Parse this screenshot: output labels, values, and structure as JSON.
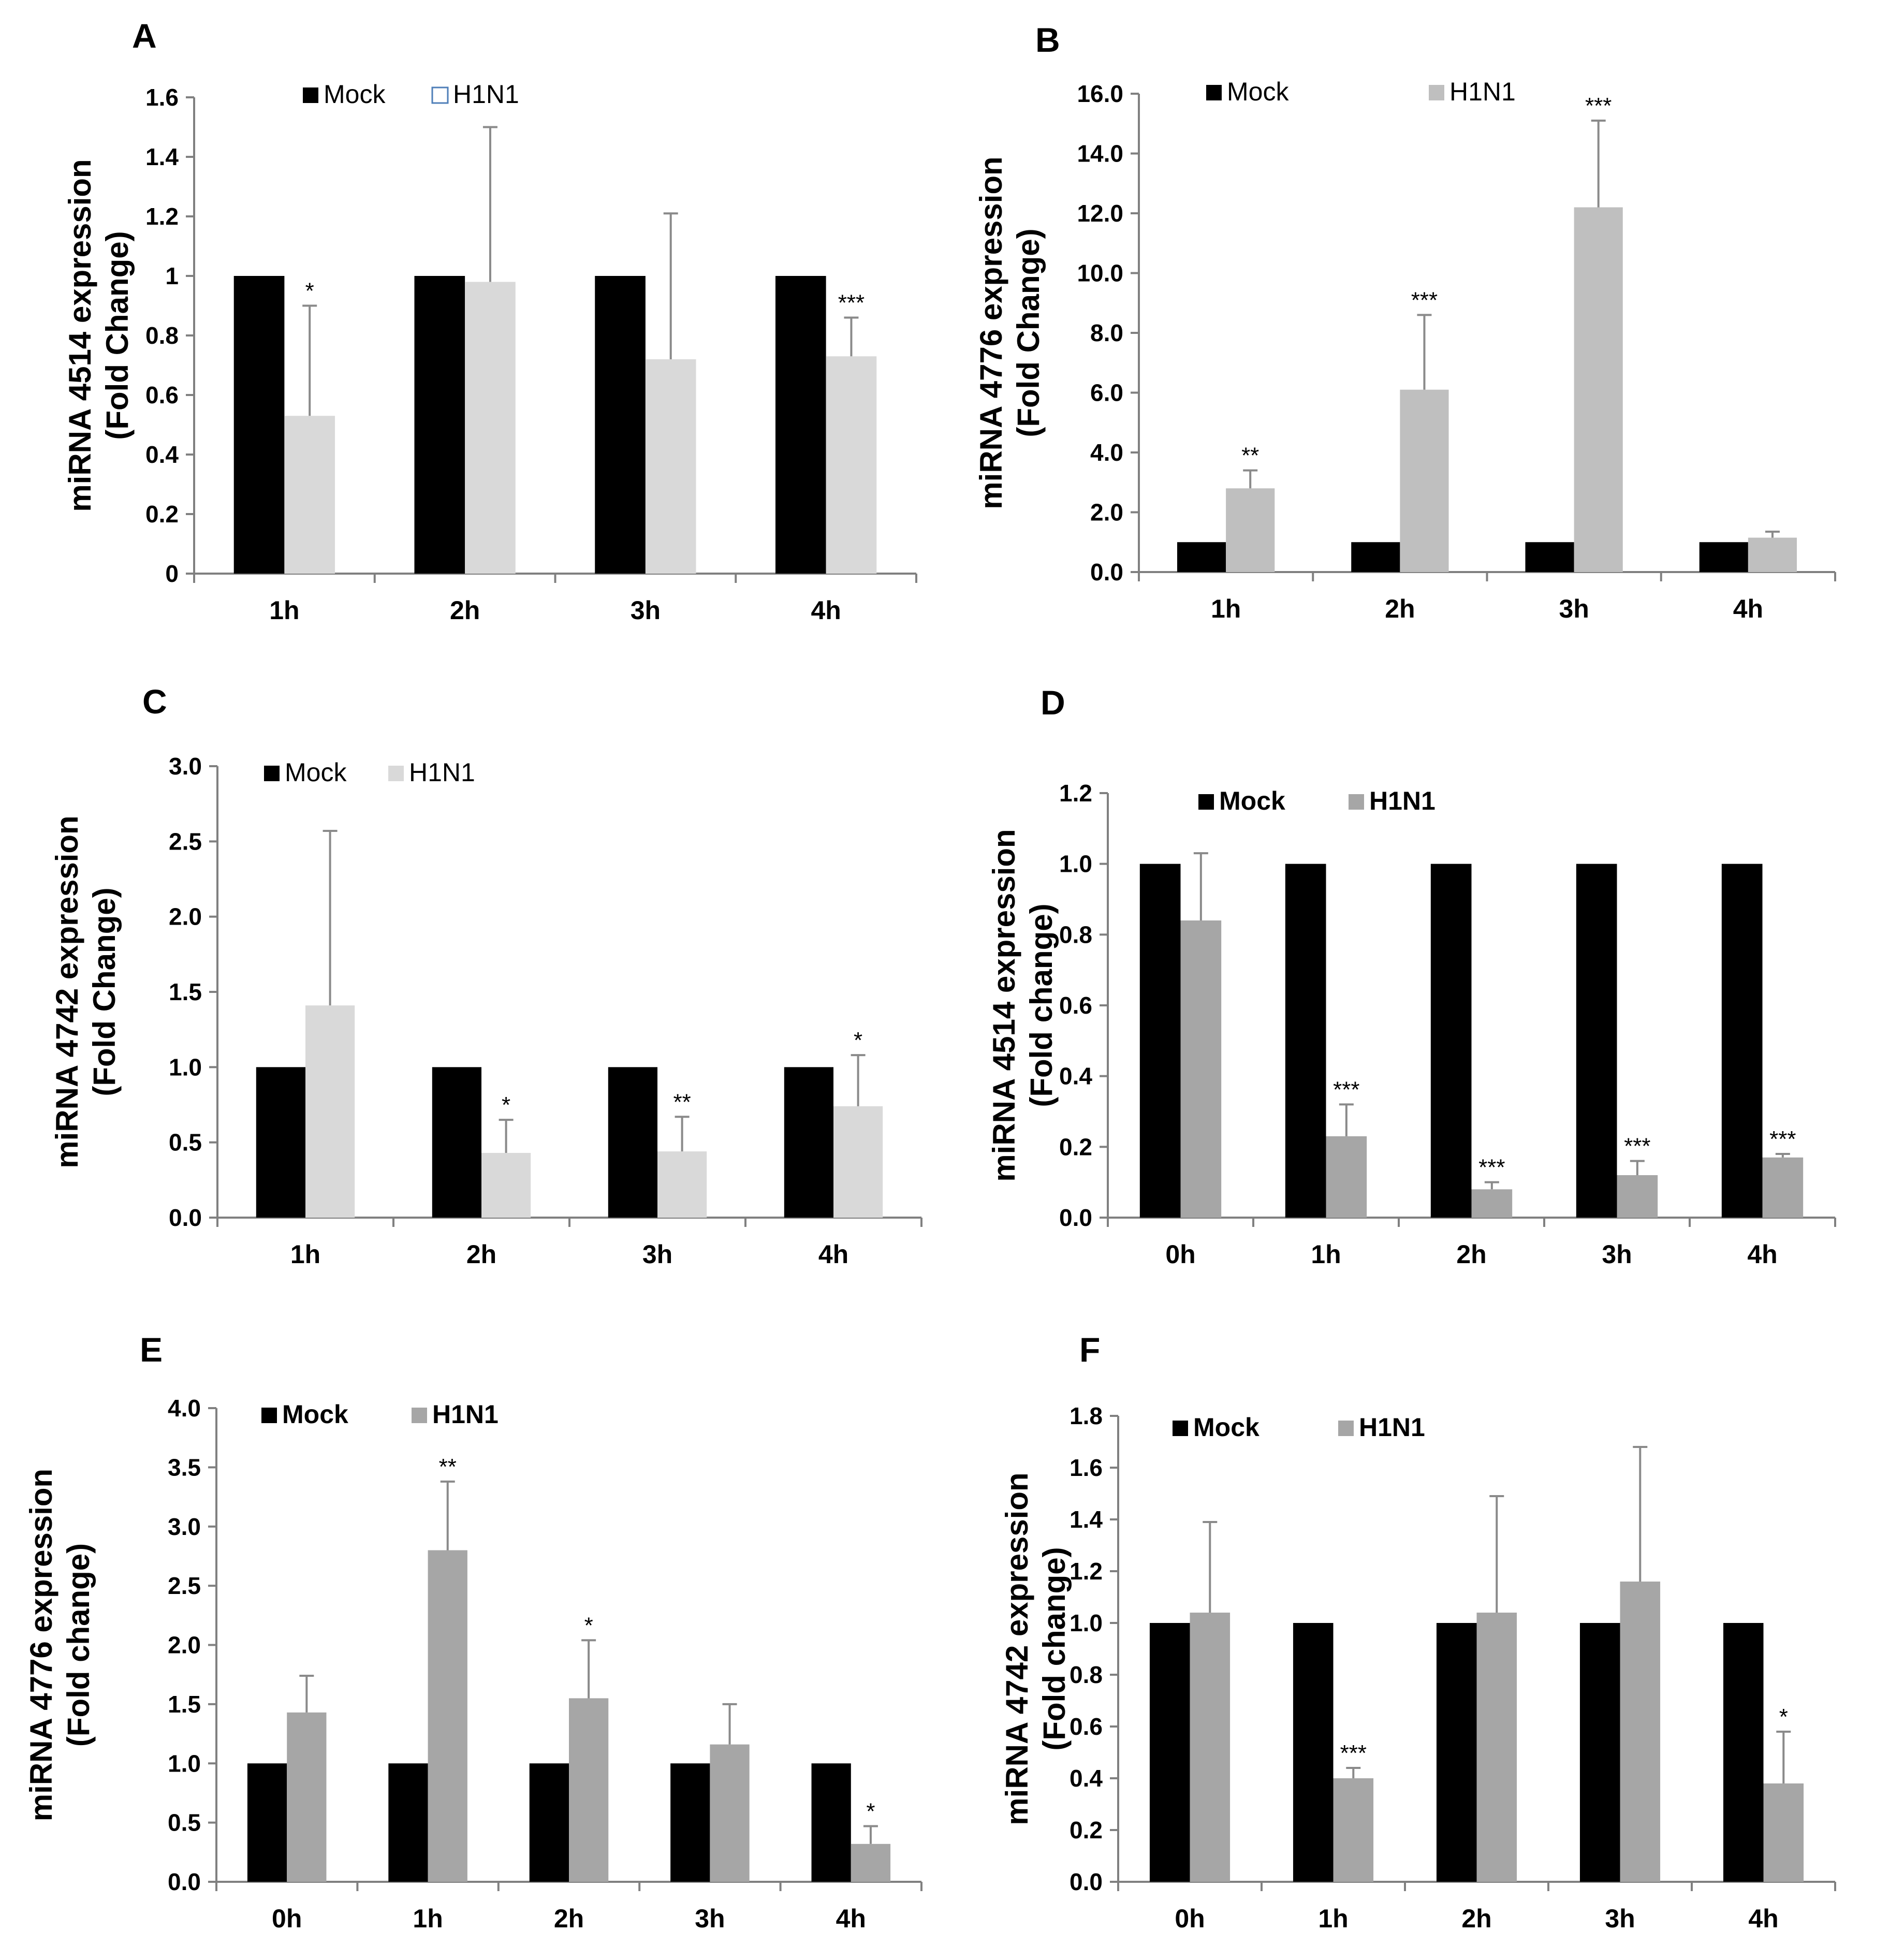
{
  "chart_data": [
    {
      "panel": "A",
      "type": "bar",
      "ylabel": [
        "miRNA 4514 expression",
        "(Fold Change)"
      ],
      "categories": [
        "1h",
        "2h",
        "3h",
        "4h"
      ],
      "ylim": [
        0,
        1.6
      ],
      "yticks": [
        "0",
        "0.2",
        "0.4",
        "0.6",
        "0.8",
        "1",
        "1.2",
        "1.4",
        "1.6"
      ],
      "series": [
        {
          "name": "Mock",
          "color": "#000000",
          "values": [
            1,
            1,
            1,
            1
          ]
        },
        {
          "name": "H1N1",
          "color": "#d9d9d9",
          "values": [
            0.53,
            0.98,
            0.72,
            0.73
          ],
          "error_top": [
            0.9,
            1.5,
            1.21,
            0.86
          ]
        }
      ],
      "significance": [
        "*",
        "",
        "",
        "***"
      ],
      "legend": {
        "mock": "Mock",
        "h1n1": "H1N1"
      }
    },
    {
      "panel": "B",
      "type": "bar",
      "ylabel": [
        "miRNA 4776 expression",
        "(Fold Change)"
      ],
      "categories": [
        "1h",
        "2h",
        "3h",
        "4h"
      ],
      "ylim": [
        0,
        16
      ],
      "yticks": [
        "0.0",
        "2.0",
        "4.0",
        "6.0",
        "8.0",
        "10.0",
        "12.0",
        "14.0",
        "16.0"
      ],
      "series": [
        {
          "name": "Mock",
          "color": "#000000",
          "values": [
            1,
            1,
            1,
            1
          ]
        },
        {
          "name": "H1N1",
          "color": "#bfbfbf",
          "values": [
            2.8,
            6.1,
            12.2,
            1.15
          ],
          "error_top": [
            3.4,
            8.6,
            15.1,
            1.35
          ]
        }
      ],
      "significance": [
        "**",
        "***",
        "***",
        ""
      ],
      "legend": {
        "mock": "Mock",
        "h1n1": "H1N1"
      }
    },
    {
      "panel": "C",
      "type": "bar",
      "ylabel": [
        "miRNA 4742 expression",
        "(Fold Change)"
      ],
      "categories": [
        "1h",
        "2h",
        "3h",
        "4h"
      ],
      "ylim": [
        0,
        3.0
      ],
      "yticks": [
        "0.0",
        "0.5",
        "1.0",
        "1.5",
        "2.0",
        "2.5",
        "3.0"
      ],
      "series": [
        {
          "name": "Mock",
          "color": "#000000",
          "values": [
            1,
            1,
            1,
            1
          ]
        },
        {
          "name": "H1N1",
          "color": "#d9d9d9",
          "values": [
            1.41,
            0.43,
            0.44,
            0.74
          ],
          "error_top": [
            2.57,
            0.65,
            0.67,
            1.08
          ]
        }
      ],
      "significance": [
        "",
        "*",
        "**",
        "*"
      ],
      "legend": {
        "mock": "Mock",
        "h1n1": "H1N1"
      }
    },
    {
      "panel": "D",
      "type": "bar",
      "ylabel": [
        "miRNA 4514 expression",
        "(Fold change)"
      ],
      "categories": [
        "0h",
        "1h",
        "2h",
        "3h",
        "4h"
      ],
      "ylim": [
        0,
        1.2
      ],
      "yticks": [
        "0.0",
        "0.2",
        "0.4",
        "0.6",
        "0.8",
        "1.0",
        "1.2"
      ],
      "series": [
        {
          "name": "Mock",
          "color": "#000000",
          "values": [
            1,
            1,
            1,
            1,
            1
          ]
        },
        {
          "name": "H1N1",
          "color": "#a6a6a6",
          "values": [
            0.84,
            0.23,
            0.08,
            0.12,
            0.17
          ],
          "error_top": [
            1.03,
            0.32,
            0.1,
            0.16,
            0.18
          ]
        }
      ],
      "significance": [
        "",
        "***",
        "***",
        "***",
        "***"
      ],
      "legend": {
        "mock": "Mock",
        "h1n1": "H1N1"
      }
    },
    {
      "panel": "E",
      "type": "bar",
      "ylabel": [
        "miRNA 4776 expression",
        "(Fold change)"
      ],
      "categories": [
        "0h",
        "1h",
        "2h",
        "3h",
        "4h"
      ],
      "ylim": [
        0,
        4.0
      ],
      "yticks": [
        "0.0",
        "0.5",
        "1.0",
        "1.5",
        "2.0",
        "2.5",
        "3.0",
        "3.5",
        "4.0"
      ],
      "series": [
        {
          "name": "Mock",
          "color": "#000000",
          "values": [
            1,
            1,
            1,
            1,
            1
          ]
        },
        {
          "name": "H1N1",
          "color": "#a6a6a6",
          "values": [
            1.43,
            2.8,
            1.55,
            1.16,
            0.32
          ],
          "error_top": [
            1.74,
            3.38,
            2.04,
            1.5,
            0.47
          ]
        }
      ],
      "significance": [
        "",
        "**",
        "*",
        "",
        "*"
      ],
      "legend": {
        "mock": "Mock",
        "h1n1": "H1N1"
      }
    },
    {
      "panel": "F",
      "type": "bar",
      "ylabel": [
        "miRNA 4742 expression",
        "(Fold change)"
      ],
      "categories": [
        "0h",
        "1h",
        "2h",
        "3h",
        "4h"
      ],
      "ylim": [
        0,
        1.8
      ],
      "yticks": [
        "0.0",
        "0.2",
        "0.4",
        "0.6",
        "0.8",
        "1.0",
        "1.2",
        "1.4",
        "1.6",
        "1.8"
      ],
      "series": [
        {
          "name": "Mock",
          "color": "#000000",
          "values": [
            1,
            1,
            1,
            1,
            1
          ]
        },
        {
          "name": "H1N1",
          "color": "#a6a6a6",
          "values": [
            1.04,
            0.4,
            1.04,
            1.16,
            0.38
          ],
          "error_top": [
            1.39,
            0.44,
            1.49,
            1.68,
            0.58
          ]
        }
      ],
      "significance": [
        "",
        "***",
        "",
        "",
        "*"
      ],
      "legend": {
        "mock": "Mock",
        "h1n1": "H1N1"
      }
    }
  ]
}
